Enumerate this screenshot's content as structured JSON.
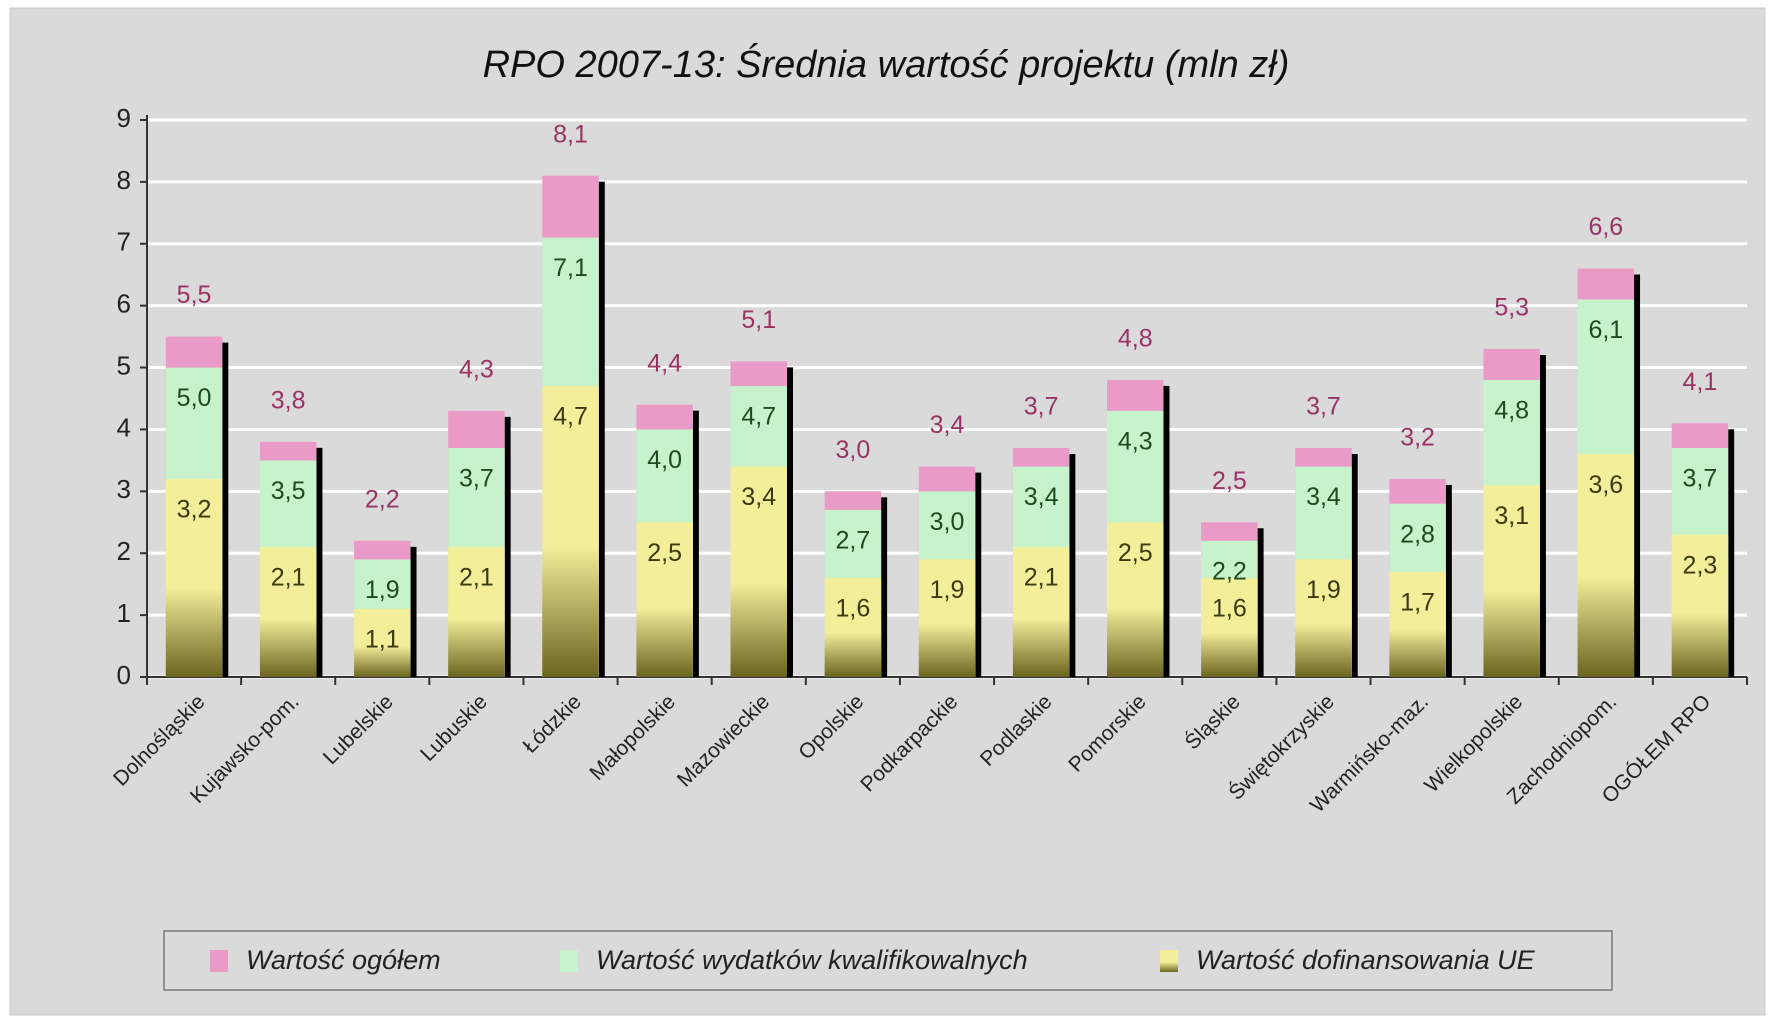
{
  "chart_data": {
    "type": "bar",
    "title": "RPO 2007-13: Średnia wartość projektu (mln zł)",
    "categories": [
      "Dolnośląskie",
      "Kujawsko-pom.",
      "Lubelskie",
      "Lubuskie",
      "Łódzkie",
      "Małopolskie",
      "Mazowieckie",
      "Opolskie",
      "Podkarpackie",
      "Podlaskie",
      "Pomorskie",
      "Śląskie",
      "Świętokrzyskie",
      "Warmińsko-maz.",
      "Wielkopolskie",
      "Zachodniopom.",
      "OGÓŁEM RPO"
    ],
    "series": [
      {
        "name": "Wartość ogółem",
        "color": "#e99ac6",
        "label_color": "#993366",
        "values": [
          5.5,
          3.8,
          2.2,
          4.3,
          8.1,
          4.4,
          5.1,
          3.0,
          3.4,
          3.7,
          4.8,
          2.5,
          3.7,
          3.2,
          5.3,
          6.6,
          4.1
        ],
        "value_labels": [
          "5,5",
          "3,8",
          "2,2",
          "4,3",
          "8,1",
          "4,4",
          "5,1",
          "3,0",
          "3,4",
          "3,7",
          "4,8",
          "2,5",
          "3,7",
          "3,2",
          "5,3",
          "6,6",
          "4,1"
        ]
      },
      {
        "name": "Wartość wydatków kwalifikowalnych",
        "color": "#c6f2cc",
        "label_color": "#1f4a1f",
        "values": [
          5.0,
          3.5,
          1.9,
          3.7,
          7.1,
          4.0,
          4.7,
          2.7,
          3.0,
          3.4,
          4.3,
          2.2,
          3.4,
          2.8,
          4.8,
          6.1,
          3.7
        ],
        "value_labels": [
          "5,0",
          "3,5",
          "1,9",
          "3,7",
          "7,1",
          "4,0",
          "4,7",
          "2,7",
          "3,0",
          "3,4",
          "4,3",
          "2,2",
          "3,4",
          "2,8",
          "4,8",
          "6,1",
          "3,7"
        ]
      },
      {
        "name": "Wartość dofinansowania UE",
        "color": "#f2ee9a",
        "label_color": "#3a3a10",
        "values": [
          3.2,
          2.1,
          1.1,
          2.1,
          4.7,
          2.5,
          3.4,
          1.6,
          1.9,
          2.1,
          2.5,
          1.6,
          1.9,
          1.7,
          3.1,
          3.6,
          2.3
        ],
        "value_labels": [
          "3,2",
          "2,1",
          "1,1",
          "2,1",
          "4,7",
          "2,5",
          "3,4",
          "1,6",
          "1,9",
          "2,1",
          "2,5",
          "1,6",
          "1,9",
          "1,7",
          "3,1",
          "3,6",
          "2,3"
        ]
      }
    ],
    "ylim": [
      0,
      9
    ],
    "yticks": [
      0,
      1,
      2,
      3,
      4,
      5,
      6,
      7,
      8,
      9
    ],
    "grid": true,
    "legend": "bottom"
  }
}
